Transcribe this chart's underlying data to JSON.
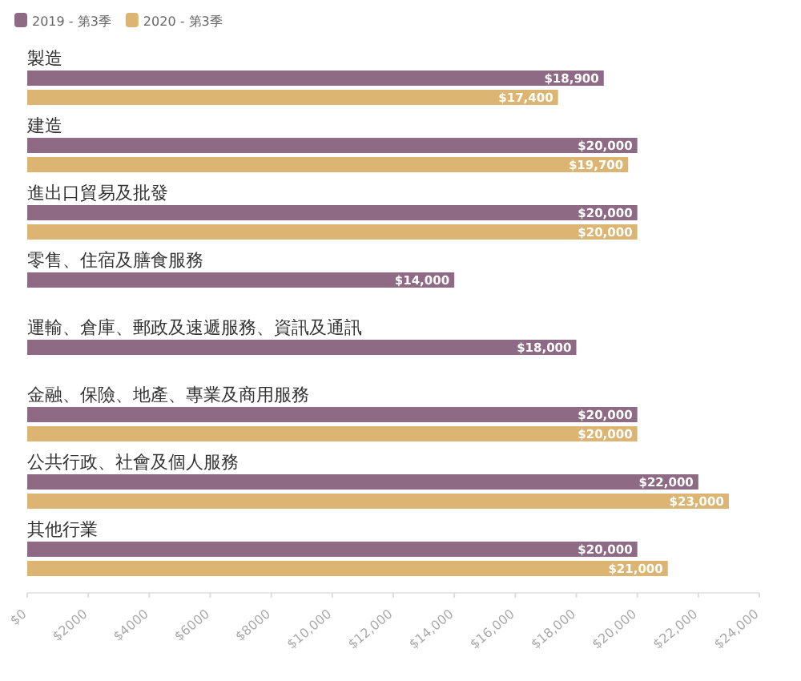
{
  "chart_data": {
    "type": "bar",
    "orientation": "horizontal",
    "categories": [
      "製造",
      "建造",
      "進出口貿易及批發",
      "零售、住宿及膳食服務",
      "運輸、倉庫、郵政及速遞服務、資訊及通訊",
      "金融、保險、地產、專業及商用服務",
      "公共行政、社會及個人服務",
      "其他行業"
    ],
    "series": [
      {
        "name": "2019 - 第3季",
        "color": "#8e6a85",
        "values": [
          18900,
          20000,
          20000,
          14000,
          18000,
          20000,
          22000,
          20000
        ],
        "value_labels": [
          "$18,900",
          "$20,000",
          "$20,000",
          "$14,000",
          "$18,000",
          "$20,000",
          "$22,000",
          "$20,000"
        ]
      },
      {
        "name": "2020 - 第3季",
        "color": "#dcb572",
        "values": [
          17400,
          19700,
          20000,
          null,
          null,
          20000,
          23000,
          21000
        ],
        "value_labels": [
          "$17,400",
          "$19,700",
          "$20,000",
          null,
          null,
          "$20,000",
          "$23,000",
          "$21,000"
        ]
      }
    ],
    "xlim": [
      0,
      24000
    ],
    "xticks": [
      {
        "value": 0,
        "label": "$0"
      },
      {
        "value": 2000,
        "label": "$2000"
      },
      {
        "value": 4000,
        "label": "$4000"
      },
      {
        "value": 6000,
        "label": "$6000"
      },
      {
        "value": 8000,
        "label": "$8000"
      },
      {
        "value": 10000,
        "label": "$10,000"
      },
      {
        "value": 12000,
        "label": "$12,000"
      },
      {
        "value": 14000,
        "label": "$14,000"
      },
      {
        "value": 16000,
        "label": "$16,000"
      },
      {
        "value": 18000,
        "label": "$18,000"
      },
      {
        "value": 20000,
        "label": "$20,000"
      },
      {
        "value": 22000,
        "label": "$22,000"
      },
      {
        "value": 24000,
        "label": "$24,000"
      }
    ],
    "legend": "top left",
    "grid": false
  }
}
